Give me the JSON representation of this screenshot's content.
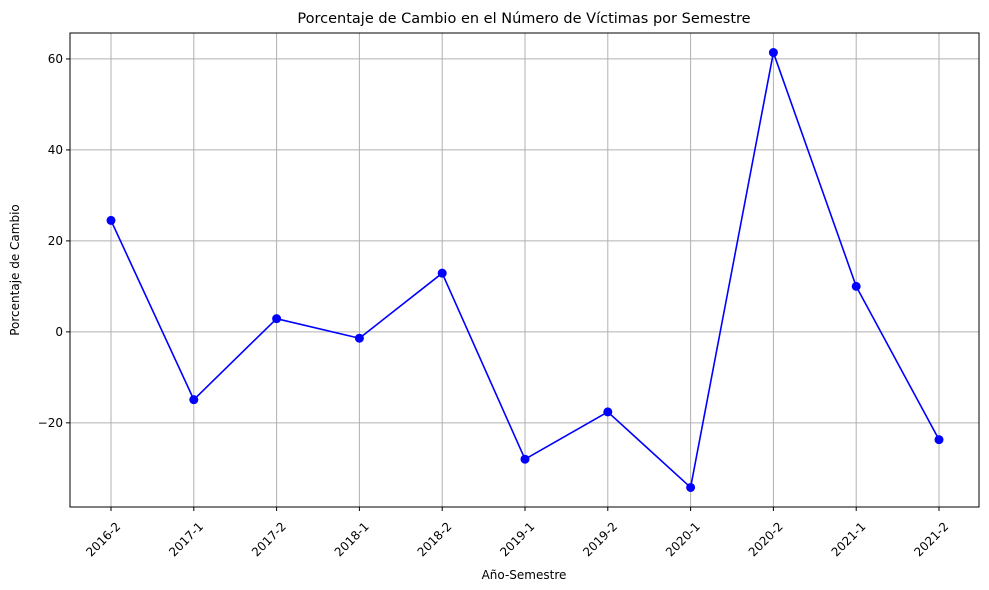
{
  "chart_data": {
    "type": "line",
    "title": "Porcentaje de Cambio en el Número de Víctimas por Semestre",
    "xlabel": "Año-Semestre",
    "ylabel": "Porcentaje de Cambio",
    "categories": [
      "2016-2",
      "2017-1",
      "2017-2",
      "2018-1",
      "2018-2",
      "2019-1",
      "2019-2",
      "2020-1",
      "2020-2",
      "2021-1",
      "2021-2"
    ],
    "series": [
      {
        "values": [
          24.5,
          -14.9,
          2.9,
          -1.4,
          12.9,
          -28.0,
          -17.6,
          -34.2,
          61.4,
          10.0,
          -23.7
        ],
        "color": "#0000ff",
        "marker": "circle"
      }
    ],
    "yticks": [
      -20,
      0,
      20,
      40,
      60
    ],
    "ytick_labels": [
      "−20",
      "0",
      "20",
      "40",
      "60"
    ],
    "ylim": [
      -38.5,
      65.7
    ],
    "grid": true,
    "grid_color": "#b0b0b0",
    "x_tick_rotation": "45 degrees"
  }
}
